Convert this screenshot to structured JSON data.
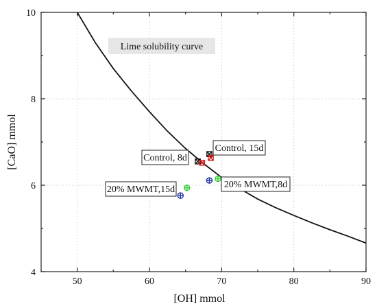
{
  "chart_data": {
    "type": "scatter",
    "xlabel": "[OH] mmol",
    "ylabel": "[CaO] mmol",
    "xlim": [
      45,
      90
    ],
    "ylim": [
      4,
      10
    ],
    "x_ticks": [
      50,
      60,
      70,
      80,
      90
    ],
    "y_ticks": [
      4,
      6,
      8,
      10
    ],
    "grid": true,
    "curve": {
      "name": "Lime solubility curve",
      "points": [
        [
          50.0,
          10.0
        ],
        [
          52.5,
          9.3
        ],
        [
          55.0,
          8.7
        ],
        [
          57.5,
          8.18
        ],
        [
          60.0,
          7.7
        ],
        [
          62.5,
          7.25
        ],
        [
          65.0,
          6.85
        ],
        [
          67.5,
          6.5
        ],
        [
          70.0,
          6.18
        ],
        [
          72.5,
          5.92
        ],
        [
          75.0,
          5.68
        ],
        [
          77.5,
          5.48
        ],
        [
          80.0,
          5.3
        ],
        [
          82.5,
          5.13
        ],
        [
          85.0,
          4.97
        ],
        [
          87.5,
          4.82
        ],
        [
          90.0,
          4.66
        ]
      ]
    },
    "points": [
      {
        "x": 66.7,
        "y": 6.55,
        "color": "#111111",
        "marker": "x-square"
      },
      {
        "x": 68.3,
        "y": 6.72,
        "color": "#111111",
        "marker": "x-square"
      },
      {
        "x": 67.3,
        "y": 6.52,
        "color": "#d62020",
        "marker": "x-square"
      },
      {
        "x": 68.5,
        "y": 6.63,
        "color": "#d62020",
        "marker": "x-square"
      },
      {
        "x": 64.3,
        "y": 5.76,
        "color": "#1f2fa6",
        "marker": "plus-circle"
      },
      {
        "x": 68.3,
        "y": 6.11,
        "color": "#1f2fa6",
        "marker": "plus-circle"
      },
      {
        "x": 65.2,
        "y": 5.94,
        "color": "#2ecc2e",
        "marker": "plus-circle"
      },
      {
        "x": 69.5,
        "y": 6.15,
        "color": "#2ecc2e",
        "marker": "plus-circle"
      }
    ],
    "annotations": [
      {
        "text": "Control, 15d"
      },
      {
        "text": "Control, 8d"
      },
      {
        "text": "20% MWMT,15d"
      },
      {
        "text": "20% MWMT,8d"
      }
    ]
  }
}
